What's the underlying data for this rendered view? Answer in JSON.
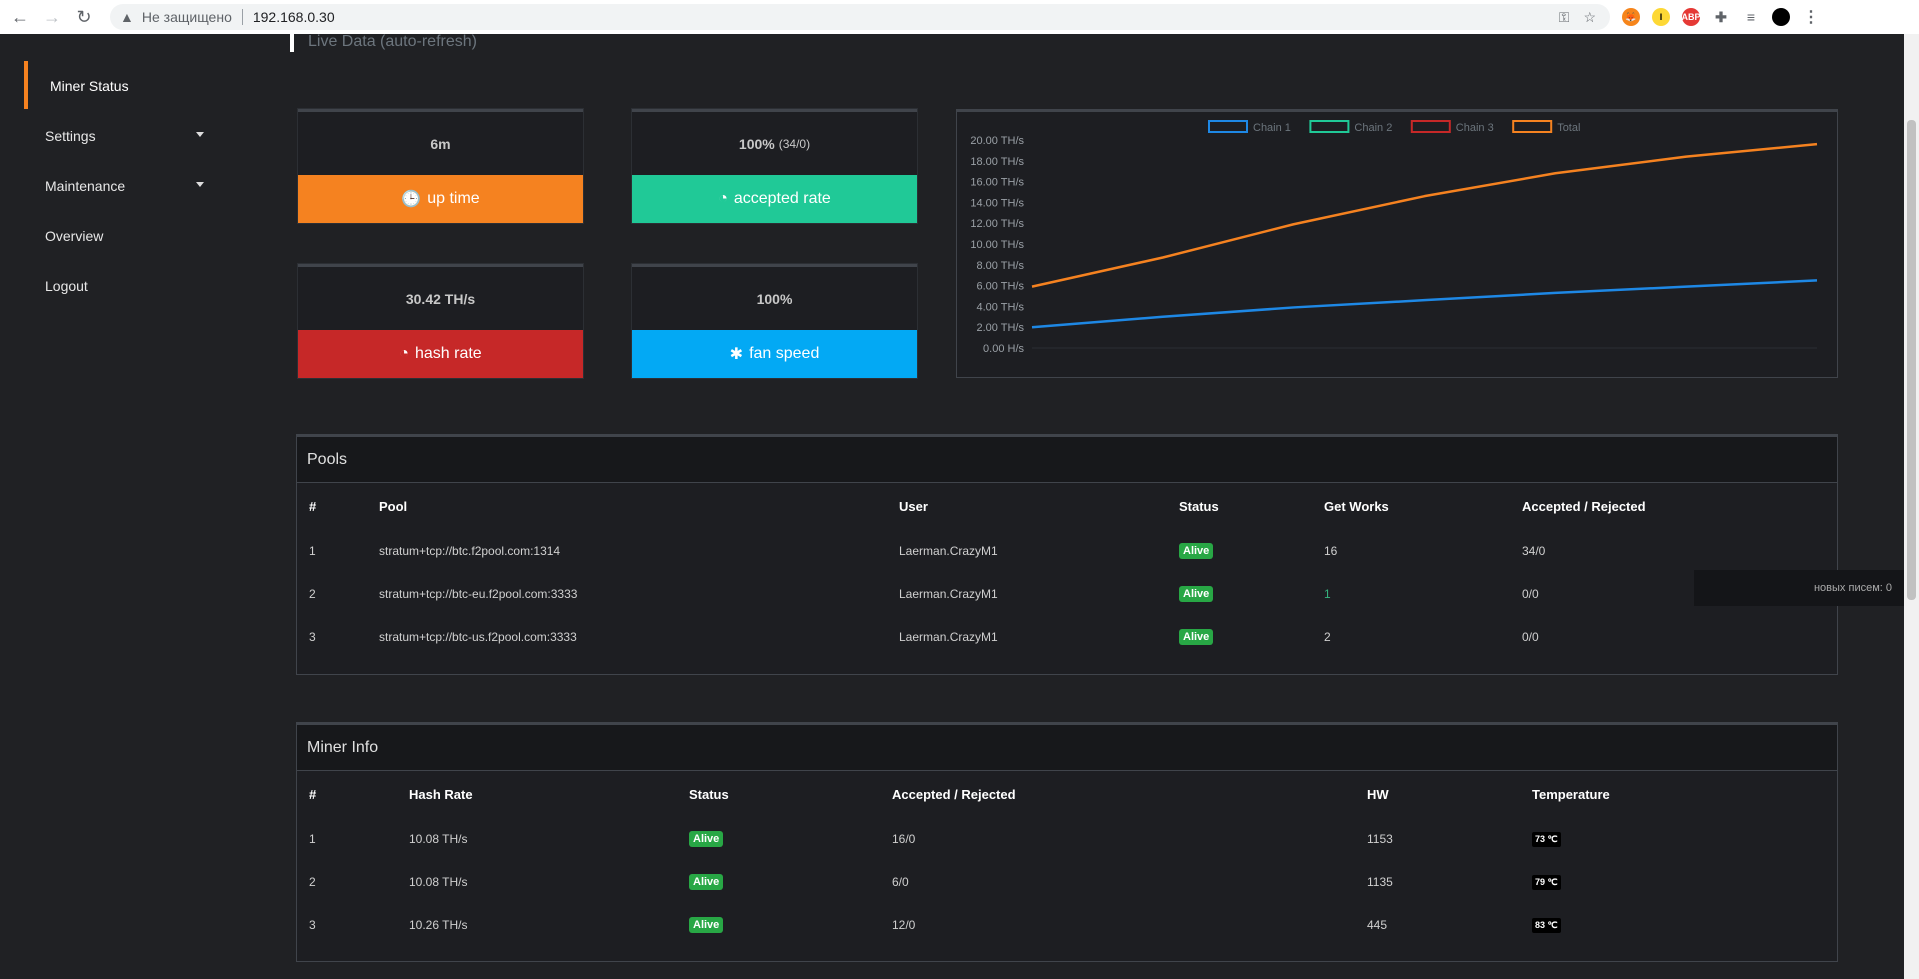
{
  "browser": {
    "insecure_label": "Не защищено",
    "address": "192.168.0.30"
  },
  "sidebar": {
    "items": [
      {
        "label": "Miner Status"
      },
      {
        "label": "Settings"
      },
      {
        "label": "Maintenance"
      },
      {
        "label": "Overview"
      },
      {
        "label": "Logout"
      }
    ]
  },
  "live_title": "Live Data (auto-refresh)",
  "stats": {
    "uptime": {
      "value": "6m",
      "label": "up time",
      "color": "#f58220"
    },
    "accepted": {
      "value": "100%",
      "sub": "(34/0)",
      "label": "accepted rate",
      "color": "#20c997"
    },
    "hashrate": {
      "value": "30.42 TH/s",
      "label": "hash rate",
      "color": "#c62828"
    },
    "fan": {
      "value": "100%",
      "label": "fan speed",
      "color": "#03a9f4"
    }
  },
  "chart_data": {
    "type": "line",
    "legend": [
      "Chain 1",
      "Chain 2",
      "Chain 3",
      "Total"
    ],
    "legend_colors": [
      "#1e88e5",
      "#20c997",
      "#c62828",
      "#f58220"
    ],
    "y_ticks": [
      "20.00 TH/s",
      "18.00 TH/s",
      "16.00 TH/s",
      "14.00 TH/s",
      "12.00 TH/s",
      "10.00 TH/s",
      "8.00 TH/s",
      "6.00 TH/s",
      "4.00 TH/s",
      "2.00 TH/s",
      "0.00 H/s"
    ],
    "ylim": [
      0,
      20
    ],
    "x": [
      0,
      1,
      2,
      3,
      4,
      5,
      6
    ],
    "series": [
      {
        "name": "Chain 1",
        "color": "#1e88e5",
        "values": [
          2.0,
          3.0,
          3.9,
          4.6,
          5.3,
          5.9,
          6.5
        ]
      },
      {
        "name": "Total",
        "color": "#f58220",
        "values": [
          5.9,
          8.7,
          11.9,
          14.6,
          16.8,
          18.4,
          19.6
        ]
      }
    ]
  },
  "pools": {
    "title": "Pools",
    "headers": [
      "#",
      "Pool",
      "User",
      "Status",
      "Get Works",
      "Accepted / Rejected"
    ],
    "rows": [
      {
        "n": "1",
        "pool": "stratum+tcp://btc.f2pool.com:1314",
        "user": "Laerman.CrazyM1",
        "status": "Alive",
        "works": "16",
        "ar": "34/0"
      },
      {
        "n": "2",
        "pool": "stratum+tcp://btc-eu.f2pool.com:3333",
        "user": "Laerman.CrazyM1",
        "status": "Alive",
        "works": "1",
        "ar": "0/0"
      },
      {
        "n": "3",
        "pool": "stratum+tcp://btc-us.f2pool.com:3333",
        "user": "Laerman.CrazyM1",
        "status": "Alive",
        "works": "2",
        "ar": "0/0"
      }
    ]
  },
  "miner_info": {
    "title": "Miner Info",
    "headers": [
      "#",
      "Hash Rate",
      "Status",
      "Accepted / Rejected",
      "HW",
      "Temperature"
    ],
    "rows": [
      {
        "n": "1",
        "hr": "10.08 TH/s",
        "status": "Alive",
        "ar": "16/0",
        "hw": "1153",
        "temp": "73 ℃"
      },
      {
        "n": "2",
        "hr": "10.08 TH/s",
        "status": "Alive",
        "ar": "6/0",
        "hw": "1135",
        "temp": "79 ℃"
      },
      {
        "n": "3",
        "hr": "10.26 TH/s",
        "status": "Alive",
        "ar": "12/0",
        "hw": "445",
        "temp": "83 ℃"
      }
    ]
  },
  "toast": "новых писем: 0"
}
